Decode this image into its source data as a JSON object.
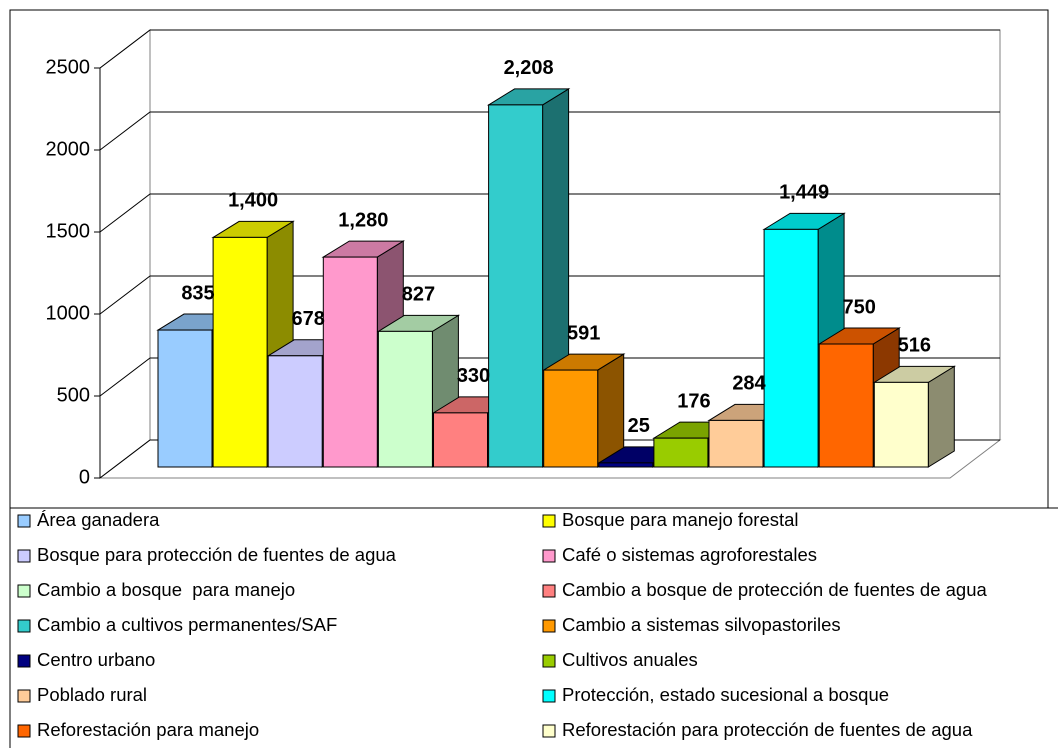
{
  "chart_data": {
    "type": "bar",
    "ylim": [
      0,
      2500
    ],
    "yticks": [
      0,
      500,
      1000,
      1500,
      2000,
      2500
    ],
    "grid": true,
    "series": [
      {
        "name": "Área ganadera",
        "color": "#99ccff",
        "values": [
          835
        ]
      },
      {
        "name": "Bosque para manejo forestal",
        "color": "#ffff00",
        "values": [
          1400
        ],
        "value_labels": [
          "1,400"
        ]
      },
      {
        "name": "Bosque para protección de fuentes de agua",
        "color": "#ccccff",
        "values": [
          678
        ]
      },
      {
        "name": "Café o sistemas agroforestales",
        "color": "#ff99cc",
        "values": [
          1280
        ],
        "value_labels": [
          "1,280"
        ]
      },
      {
        "name": "Cambio a bosque  para manejo",
        "color": "#ccffcc",
        "values": [
          827
        ]
      },
      {
        "name": "Cambio a bosque de protección de fuentes de agua",
        "color": "#ff8080",
        "values": [
          330
        ]
      },
      {
        "name": "Cambio a cultivos permanentes/SAF",
        "color": "#33cccc",
        "values": [
          2208
        ],
        "value_labels": [
          "2,208"
        ]
      },
      {
        "name": "Cambio a sistemas silvopastoriles",
        "color": "#ff9900",
        "values": [
          591
        ]
      },
      {
        "name": "Centro urbano",
        "color": "#000080",
        "values": [
          25
        ]
      },
      {
        "name": "Cultivos anuales",
        "color": "#99cc00",
        "values": [
          176
        ]
      },
      {
        "name": "Poblado rural",
        "color": "#ffcc99",
        "values": [
          284
        ]
      },
      {
        "name": "Protección, estado sucesional a bosque",
        "color": "#00ffff",
        "values": [
          1449
        ],
        "value_labels": [
          "1,449"
        ]
      },
      {
        "name": "Reforestación para manejo",
        "color": "#ff6600",
        "values": [
          750
        ]
      },
      {
        "name": "Reforestación para protección de fuentes de agua",
        "color": "#ffffcc",
        "values": [
          516
        ]
      }
    ]
  }
}
